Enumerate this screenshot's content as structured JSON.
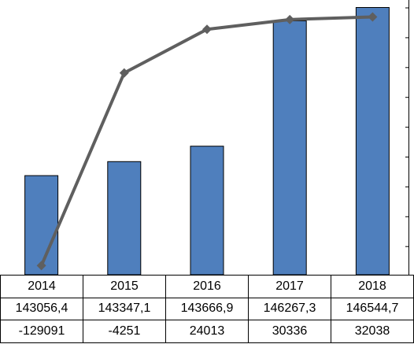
{
  "chart_data": {
    "type": "bar",
    "categories": [
      "2014",
      "2015",
      "2016",
      "2017",
      "2018"
    ],
    "series": [
      {
        "type": "bar",
        "values": [
          143056.4,
          143347.1,
          143666.9,
          146267.3,
          146544.7
        ]
      },
      {
        "type": "line",
        "values": [
          -129091,
          -4251,
          24013,
          30336,
          32038
        ]
      }
    ],
    "table_rows": [
      [
        "143056,4",
        "143347,1",
        "143666,9",
        "146267,3",
        "146544,7"
      ],
      [
        "-129091",
        "-4251",
        "24013",
        "30336",
        "32038"
      ]
    ],
    "xlabel": "",
    "ylabel": "",
    "ylim_bar": [
      141000,
      146700
    ],
    "ylim_line": [
      -135000,
      43000
    ],
    "grid": false,
    "colors": {
      "bar": "#4f7fbd",
      "bar_edge": "#000000",
      "line": "#5f5f5f",
      "marker": "#5f5f5f"
    }
  }
}
